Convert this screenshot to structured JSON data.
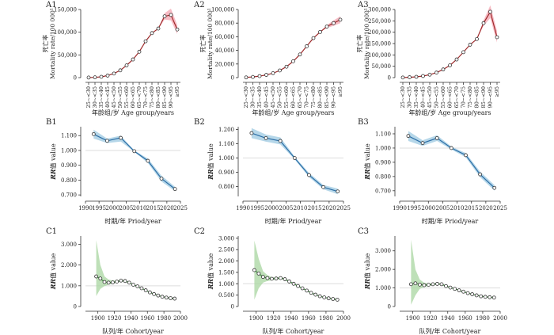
{
  "figure": {
    "colors": {
      "red": "#9e2a2b",
      "red_band": "#f4a6b2",
      "blue": "#2c6ea6",
      "blue_band": "#9ecae1",
      "green": "#3d8b3d",
      "green_band": "#a8d5a0",
      "ref": "#dddddd"
    }
  },
  "chart_data": [
    {
      "panel": "A1",
      "type": "line",
      "categories": [
        "25~<30",
        "30~<35",
        "35~<40",
        "40~<45",
        "45~<50",
        "50~<55",
        "55~<60",
        "60~<65",
        "65~<70",
        "70~<75",
        "75~<80",
        "80~<85",
        "85~<90",
        "90~<95",
        "≥95"
      ],
      "values": [
        200,
        600,
        1800,
        4500,
        9000,
        16000,
        27000,
        40000,
        57000,
        80000,
        98000,
        108000,
        135000,
        138000,
        106000
      ],
      "band_lower": [
        200,
        600,
        1800,
        4500,
        9000,
        16000,
        27000,
        40000,
        57000,
        80000,
        98000,
        108000,
        128000,
        126000,
        96000
      ],
      "band_upper": [
        200,
        600,
        1800,
        4500,
        9000,
        16000,
        27000,
        40000,
        57000,
        80000,
        98000,
        108000,
        142000,
        152000,
        116000
      ],
      "ylim": [
        0,
        150000
      ],
      "yticks": [
        "0",
        "50,000",
        "100,000",
        "150,000"
      ],
      "ytick_values": [
        0,
        50000,
        100000,
        150000
      ],
      "ylabel_cn": "死亡率",
      "ylabel_en": "Mortality rate/100 000¹",
      "xlabel": "年龄组/岁 Age group/years"
    },
    {
      "panel": "A2",
      "type": "line",
      "categories": [
        "25~<30",
        "30~<35",
        "35~<40",
        "40~<45",
        "45~<50",
        "50~<55",
        "55~<60",
        "60~<65",
        "65~<70",
        "70~<75",
        "75~<80",
        "80~<85",
        "85~<90",
        "90~<95",
        "≥95"
      ],
      "values": [
        300,
        1000,
        2200,
        4000,
        6500,
        10500,
        16000,
        24000,
        34000,
        46000,
        58000,
        67000,
        75000,
        80000,
        85000
      ],
      "band_lower": [
        300,
        1000,
        2200,
        4000,
        6500,
        10500,
        16000,
        24000,
        34000,
        46000,
        58000,
        67000,
        73000,
        76000,
        80000
      ],
      "band_upper": [
        300,
        1000,
        2200,
        4000,
        6500,
        10500,
        16000,
        24000,
        34000,
        46000,
        58000,
        67000,
        77000,
        84000,
        90000
      ],
      "ylim": [
        0,
        100000
      ],
      "yticks": [
        "0",
        "20,000",
        "40,000",
        "60,000",
        "80,000",
        "100,000"
      ],
      "ytick_values": [
        0,
        20000,
        40000,
        60000,
        80000,
        100000
      ],
      "ylabel_cn": "死亡率",
      "ylabel_en": "Mortality rate/100 000¹",
      "xlabel": "年龄组/岁 Age group/years"
    },
    {
      "panel": "A3",
      "type": "line",
      "categories": [
        "25~<30",
        "30~<35",
        "35~<40",
        "40~<45",
        "45~<50",
        "50~<55",
        "55~<60",
        "60~<65",
        "65~<70",
        "70~<75",
        "75~<80",
        "80~<85",
        "85~<90",
        "90~<95",
        "≥95"
      ],
      "values": [
        500,
        1500,
        3500,
        7000,
        13000,
        22000,
        36000,
        54000,
        80000,
        112000,
        145000,
        170000,
        240000,
        290000,
        178000
      ],
      "band_lower": [
        500,
        1500,
        3500,
        7000,
        13000,
        22000,
        36000,
        54000,
        80000,
        112000,
        145000,
        170000,
        228000,
        262000,
        155000
      ],
      "band_upper": [
        500,
        1500,
        3500,
        7000,
        13000,
        22000,
        36000,
        54000,
        80000,
        112000,
        145000,
        170000,
        252000,
        318000,
        205000
      ],
      "ylim": [
        0,
        300000
      ],
      "yticks": [
        "0",
        "50,000",
        "100,000",
        "150,000",
        "200,000",
        "250,000",
        "300,000"
      ],
      "ytick_values": [
        0,
        50000,
        100000,
        150000,
        200000,
        250000,
        300000
      ],
      "ylabel_cn": "死亡率",
      "ylabel_en": "Mortality rate/100 000¹",
      "xlabel": "年龄组/岁 Age group/years"
    },
    {
      "panel": "B1",
      "type": "line",
      "x": [
        1993,
        1998,
        2003,
        2008,
        2013,
        2018,
        2023
      ],
      "values": [
        1.11,
        1.065,
        1.085,
        0.995,
        0.93,
        0.81,
        0.74
      ],
      "band_lower": [
        1.08,
        1.05,
        1.06,
        0.99,
        0.915,
        0.79,
        0.725
      ],
      "band_upper": [
        1.14,
        1.08,
        1.1,
        1.0,
        0.945,
        0.83,
        0.755
      ],
      "ref": 1.0,
      "xlim": [
        1990,
        2025
      ],
      "xticks": [
        1990,
        1995,
        2000,
        2005,
        2010,
        2015,
        2020,
        2025
      ],
      "ylim": [
        0.69,
        1.16
      ],
      "ytick_values": [
        0.7,
        0.8,
        0.9,
        1.0,
        1.1
      ],
      "yticks": [
        "0.700",
        "0.800",
        "0.900",
        "1.000",
        "1.100"
      ],
      "ylabel_it": "RR",
      "ylabel_rest": "值 value",
      "xlabel": "时期/年 Priod/year"
    },
    {
      "panel": "B2",
      "type": "line",
      "x": [
        1993,
        1998,
        2003,
        2008,
        2013,
        2018,
        2023
      ],
      "values": [
        1.175,
        1.14,
        1.12,
        1.0,
        0.88,
        0.795,
        0.765
      ],
      "band_lower": [
        1.14,
        1.115,
        1.095,
        0.99,
        0.865,
        0.78,
        0.745
      ],
      "band_upper": [
        1.21,
        1.165,
        1.145,
        1.01,
        0.895,
        0.81,
        0.785
      ],
      "ref": 1.0,
      "xlim": [
        1990,
        2025
      ],
      "xticks": [
        1990,
        1995,
        2000,
        2005,
        2010,
        2015,
        2020,
        2025
      ],
      "ylim": [
        0.73,
        1.22
      ],
      "ytick_values": [
        0.8,
        0.9,
        1.0,
        1.1,
        1.2
      ],
      "yticks": [
        "0.800",
        "0.900",
        "1.000",
        "1.100",
        "1.200"
      ],
      "ylabel_it": "RR",
      "ylabel_rest": "值 value",
      "xlabel": "时期/年 Priod/year"
    },
    {
      "panel": "B3",
      "type": "line",
      "x": [
        1993,
        1998,
        2003,
        2008,
        2013,
        2018,
        2023
      ],
      "values": [
        1.085,
        1.035,
        1.07,
        1.0,
        0.95,
        0.815,
        0.72
      ],
      "band_lower": [
        1.05,
        1.015,
        1.05,
        0.99,
        0.935,
        0.795,
        0.7
      ],
      "band_upper": [
        1.12,
        1.055,
        1.09,
        1.01,
        0.965,
        0.835,
        0.74
      ],
      "ref": 1.0,
      "xlim": [
        1990,
        2025
      ],
      "xticks": [
        1990,
        1995,
        2000,
        2005,
        2010,
        2015,
        2020,
        2025
      ],
      "ylim": [
        0.66,
        1.15
      ],
      "ytick_values": [
        0.7,
        0.8,
        0.9,
        1.0,
        1.1
      ],
      "yticks": [
        "0.700",
        "0.800",
        "0.900",
        "1.000",
        "1.100"
      ],
      "ylabel_it": "RR",
      "ylabel_rest": "值 value",
      "xlabel": "时期/年 Priod/year"
    },
    {
      "panel": "C1",
      "type": "line",
      "x": [
        1898,
        1903,
        1908,
        1913,
        1918,
        1923,
        1928,
        1933,
        1938,
        1943,
        1948,
        1953,
        1958,
        1963,
        1968,
        1973,
        1978,
        1983,
        1988,
        1993
      ],
      "values": [
        1.45,
        1.35,
        1.18,
        1.15,
        1.16,
        1.2,
        1.25,
        1.23,
        1.15,
        1.05,
        0.97,
        0.88,
        0.78,
        0.68,
        0.6,
        0.53,
        0.47,
        0.43,
        0.4,
        0.38
      ],
      "band_lower": [
        0.5,
        0.85,
        0.98,
        1.05,
        1.1,
        1.15,
        1.2,
        1.19,
        1.12,
        1.02,
        0.95,
        0.86,
        0.76,
        0.66,
        0.58,
        0.51,
        0.45,
        0.41,
        0.37,
        0.33
      ],
      "band_upper": [
        3.2,
        2.0,
        1.45,
        1.3,
        1.25,
        1.25,
        1.3,
        1.27,
        1.18,
        1.08,
        0.99,
        0.9,
        0.8,
        0.7,
        0.62,
        0.55,
        0.49,
        0.45,
        0.43,
        0.43
      ],
      "ref": 1.0,
      "xlim": [
        1885,
        2000
      ],
      "xticks": [
        1900,
        1920,
        1940,
        1960,
        1980,
        2000
      ],
      "ylim": [
        0,
        3.4
      ],
      "ytick_values": [
        0,
        1.0,
        2.0,
        3.0
      ],
      "yticks": [
        "0",
        "1.000",
        "2.000",
        "3.000"
      ],
      "ylabel_it": "RR",
      "ylabel_rest": "值 value",
      "xlabel": "队列/年 Cohort/year"
    },
    {
      "panel": "C2",
      "type": "line",
      "x": [
        1898,
        1903,
        1908,
        1913,
        1918,
        1923,
        1928,
        1933,
        1938,
        1943,
        1948,
        1953,
        1958,
        1963,
        1968,
        1973,
        1978,
        1983,
        1988,
        1993
      ],
      "values": [
        1.6,
        1.45,
        1.3,
        1.25,
        1.22,
        1.23,
        1.25,
        1.2,
        1.1,
        1.0,
        0.9,
        0.8,
        0.7,
        0.6,
        0.52,
        0.45,
        0.4,
        0.36,
        0.33,
        0.3
      ],
      "band_lower": [
        0.3,
        0.8,
        1.05,
        1.12,
        1.15,
        1.18,
        1.2,
        1.16,
        1.07,
        0.97,
        0.88,
        0.78,
        0.68,
        0.58,
        0.5,
        0.43,
        0.38,
        0.34,
        0.3,
        0.25
      ],
      "band_upper": [
        2.9,
        2.1,
        1.55,
        1.38,
        1.29,
        1.28,
        1.3,
        1.24,
        1.13,
        1.03,
        0.92,
        0.82,
        0.72,
        0.62,
        0.54,
        0.47,
        0.42,
        0.38,
        0.36,
        0.35
      ],
      "ref": 1.0,
      "xlim": [
        1885,
        2000
      ],
      "xticks": [
        1900,
        1920,
        1940,
        1960,
        1980,
        2000
      ],
      "ylim": [
        0,
        3.1
      ],
      "ytick_values": [
        0,
        0.5,
        1.0,
        1.5,
        2.0,
        2.5,
        3.0
      ],
      "yticks": [
        "0",
        "0.500",
        "1.000",
        "1.500",
        "2.000",
        "2.500",
        "3.000"
      ],
      "ylabel_it": "RR",
      "ylabel_rest": "值 value",
      "xlabel": "队列/年 Cohort/year"
    },
    {
      "panel": "C3",
      "type": "line",
      "x": [
        1898,
        1903,
        1908,
        1913,
        1918,
        1923,
        1928,
        1933,
        1938,
        1943,
        1948,
        1953,
        1958,
        1963,
        1968,
        1973,
        1978,
        1983,
        1988,
        1993
      ],
      "values": [
        1.2,
        1.25,
        1.18,
        1.15,
        1.17,
        1.2,
        1.22,
        1.2,
        1.1,
        1.02,
        0.95,
        0.87,
        0.8,
        0.72,
        0.66,
        0.6,
        0.55,
        0.52,
        0.5,
        0.48
      ],
      "band_lower": [
        0.1,
        0.6,
        0.95,
        1.05,
        1.1,
        1.15,
        1.18,
        1.16,
        1.07,
        0.99,
        0.93,
        0.85,
        0.78,
        0.7,
        0.64,
        0.58,
        0.53,
        0.5,
        0.47,
        0.43
      ],
      "band_upper": [
        3.6,
        2.0,
        1.45,
        1.28,
        1.24,
        1.25,
        1.26,
        1.24,
        1.13,
        1.05,
        0.97,
        0.89,
        0.82,
        0.74,
        0.68,
        0.62,
        0.57,
        0.54,
        0.53,
        0.53
      ],
      "ref": 1.0,
      "xlim": [
        1885,
        2000
      ],
      "xticks": [
        1900,
        1920,
        1940,
        1960,
        1980,
        2000
      ],
      "ylim": [
        0,
        3.8
      ],
      "ytick_values": [
        0,
        1.0,
        2.0,
        3.0
      ],
      "yticks": [
        "0",
        "1.000",
        "2.000",
        "3.000"
      ],
      "ylabel_it": "RR",
      "ylabel_rest": "值 value",
      "xlabel": "队列/年 Cohort/year"
    }
  ]
}
